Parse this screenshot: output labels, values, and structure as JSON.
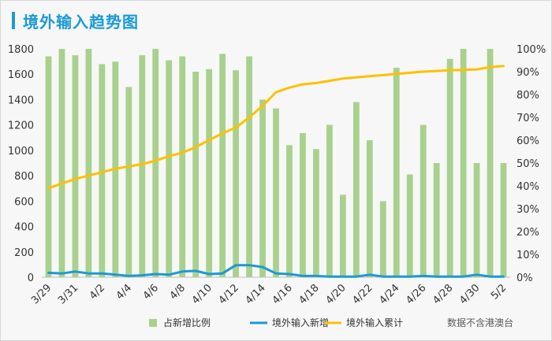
{
  "title": "境外输入趋势图",
  "colors": {
    "bar": "#a9d18e",
    "new_line": "#1a9ad6",
    "cumulative_line": "#ffc000",
    "title": "#1a9ad6"
  },
  "chart_data": {
    "type": "bar",
    "categories": [
      "3/29",
      "3/30",
      "3/31",
      "4/1",
      "4/2",
      "4/3",
      "4/4",
      "4/5",
      "4/6",
      "4/7",
      "4/8",
      "4/9",
      "4/10",
      "4/11",
      "4/12",
      "4/13",
      "4/14",
      "4/15",
      "4/16",
      "4/17",
      "4/18",
      "4/19",
      "4/20",
      "4/21",
      "4/22",
      "4/23",
      "4/24",
      "4/25",
      "4/26",
      "4/27",
      "4/28",
      "4/29",
      "4/30",
      "5/1",
      "5/2"
    ],
    "x_tick_labels": [
      "3/29",
      "",
      "3/31",
      "",
      "4/2",
      "",
      "4/4",
      "",
      "4/6",
      "",
      "4/8",
      "",
      "4/10",
      "",
      "4/12",
      "",
      "4/14",
      "",
      "4/16",
      "",
      "4/18",
      "",
      "4/20",
      "",
      "4/22",
      "",
      "4/24",
      "",
      "4/26",
      "",
      "4/28",
      "",
      "4/30",
      "",
      "5/2"
    ],
    "series": [
      {
        "name": "占新增比例",
        "type": "bar",
        "axis": "right",
        "values": [
          96.7,
          100,
          97.2,
          100,
          93.3,
          94.4,
          83.3,
          97.2,
          100,
          95,
          96.7,
          90,
          91.1,
          97.8,
          90.6,
          96.7,
          77.8,
          73.9,
          57.8,
          63.1,
          56.1,
          66.7,
          36.1,
          76.7,
          60,
          33.3,
          91.7,
          45,
          66.7,
          50,
          95.6,
          100,
          50,
          100,
          50
        ]
      },
      {
        "name": "境外输入新增",
        "type": "line",
        "axis": "left",
        "values": [
          35,
          30,
          45,
          30,
          30,
          20,
          10,
          15,
          25,
          20,
          45,
          50,
          25,
          30,
          95,
          95,
          80,
          30,
          25,
          10,
          10,
          5,
          5,
          5,
          20,
          5,
          5,
          5,
          10,
          5,
          5,
          5,
          20,
          5,
          5
        ]
      },
      {
        "name": "境外输入累计",
        "type": "line",
        "axis": "right",
        "values": [
          39,
          41,
          43,
          44.5,
          46,
          47.5,
          48.5,
          49.5,
          51,
          53,
          54.5,
          57,
          60,
          63,
          65.5,
          70,
          75,
          81,
          83,
          84.5,
          85,
          86,
          87,
          87.5,
          88,
          88.5,
          89,
          89.5,
          90,
          90.3,
          90.6,
          90.8,
          91,
          92,
          92.5
        ]
      }
    ],
    "y_left": {
      "min": 0,
      "max": 1800,
      "ticks": [
        "0",
        "200",
        "400",
        "600",
        "800",
        "1000",
        "1200",
        "1400",
        "1600",
        "1800"
      ]
    },
    "y_right": {
      "min": 0,
      "max": 100,
      "ticks": [
        "0%",
        "10%",
        "20%",
        "30%",
        "40%",
        "50%",
        "60%",
        "70%",
        "80%",
        "90%",
        "100%"
      ]
    },
    "legend": [
      "占新增比例",
      "境外输入新增",
      "境外输入累计"
    ],
    "legend_position": "bottom",
    "note": "数据不含港澳台"
  }
}
